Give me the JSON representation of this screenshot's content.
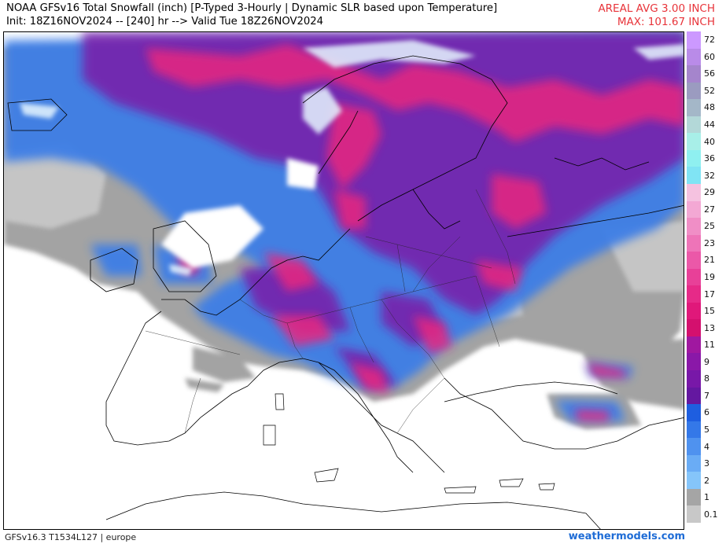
{
  "header": {
    "title": "NOAA GFSv16 Total Snowfall (inch) [P-Typed 3-Hourly | Dynamic SLR based upon Temperature]",
    "subtitle": "Init: 18Z16NOV2024 -- [240] hr --> Valid Tue 18Z26NOV2024",
    "areal_avg": "AREAL AVG 3.00 INCH",
    "max": "MAX: 101.67 INCH"
  },
  "footer": {
    "model_info": "GFSv16.3 T1534L127 | europe",
    "site": "weathermodels.com"
  },
  "colors": {
    "accent_red": "#e8343a",
    "link_blue": "#1e6cd6"
  },
  "colorbar": {
    "labels": [
      "72",
      "60",
      "56",
      "52",
      "48",
      "44",
      "40",
      "36",
      "32",
      "29",
      "27",
      "25",
      "23",
      "21",
      "19",
      "17",
      "15",
      "13",
      "11",
      "9",
      "8",
      "7",
      "6",
      "5",
      "4",
      "3",
      "2",
      "1",
      "0.1"
    ],
    "colors": [
      "#cc99ff",
      "#b98be8",
      "#a585cc",
      "#9b9bc0",
      "#a4b7c8",
      "#b3d8d8",
      "#a8efe8",
      "#8ff0f0",
      "#80e4f4",
      "#f5c2e0",
      "#f3a8d4",
      "#f08ec6",
      "#ee74b8",
      "#eb58a8",
      "#e84098",
      "#e62a88",
      "#e0187a",
      "#d4106e",
      "#a018a0",
      "#8a18a8",
      "#7818a8",
      "#6418a0",
      "#1e5ee0",
      "#3478e8",
      "#4f92ef",
      "#6aacf5",
      "#85c5fa",
      "#a5a5a5",
      "#c8c8c8"
    ]
  },
  "map": {
    "region": "europe"
  }
}
